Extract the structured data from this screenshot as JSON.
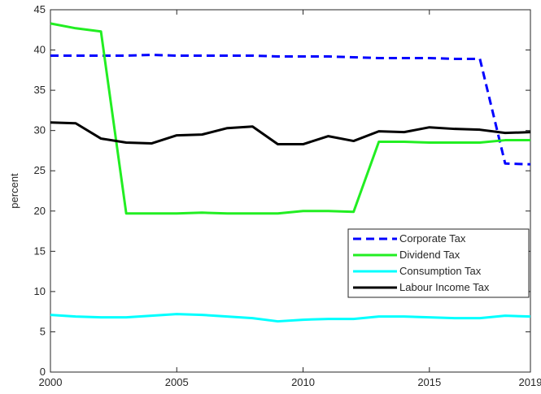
{
  "chart_data": {
    "type": "line",
    "ylabel": "percent",
    "x": [
      2000,
      2001,
      2002,
      2003,
      2004,
      2005,
      2006,
      2007,
      2008,
      2009,
      2010,
      2011,
      2012,
      2013,
      2014,
      2015,
      2016,
      2017,
      2018,
      2019
    ],
    "xlim": [
      2000,
      2019
    ],
    "xticks": [
      2000,
      2005,
      2010,
      2015,
      2019
    ],
    "ylim": [
      0,
      45
    ],
    "yticks": [
      0,
      5,
      10,
      15,
      20,
      25,
      30,
      35,
      40,
      45
    ],
    "legend": "lower right",
    "series": [
      {
        "name": "Corporate Tax",
        "color": "#0000ff",
        "dashed": true,
        "values": [
          39.3,
          39.3,
          39.3,
          39.3,
          39.4,
          39.3,
          39.3,
          39.3,
          39.3,
          39.2,
          39.2,
          39.2,
          39.1,
          39.0,
          39.0,
          39.0,
          38.9,
          38.9,
          25.9,
          25.8
        ]
      },
      {
        "name": "Dividend Tax",
        "color": "#22ee22",
        "dashed": false,
        "values": [
          43.3,
          42.7,
          42.3,
          19.7,
          19.7,
          19.7,
          19.8,
          19.7,
          19.7,
          19.7,
          20.0,
          20.0,
          19.9,
          28.6,
          28.6,
          28.5,
          28.5,
          28.5,
          28.8,
          28.8
        ]
      },
      {
        "name": "Consumption Tax",
        "color": "#00ffff",
        "dashed": false,
        "values": [
          7.1,
          6.9,
          6.8,
          6.8,
          7.0,
          7.2,
          7.1,
          6.9,
          6.7,
          6.3,
          6.5,
          6.6,
          6.6,
          6.9,
          6.9,
          6.8,
          6.7,
          6.7,
          7.0,
          6.9
        ]
      },
      {
        "name": "Labour Income Tax",
        "color": "#000000",
        "dashed": false,
        "values": [
          31.0,
          30.9,
          29.0,
          28.5,
          28.4,
          29.4,
          29.5,
          30.3,
          30.5,
          28.3,
          28.3,
          29.3,
          28.7,
          29.9,
          29.8,
          30.4,
          30.2,
          30.1,
          29.7,
          29.8
        ]
      }
    ]
  }
}
